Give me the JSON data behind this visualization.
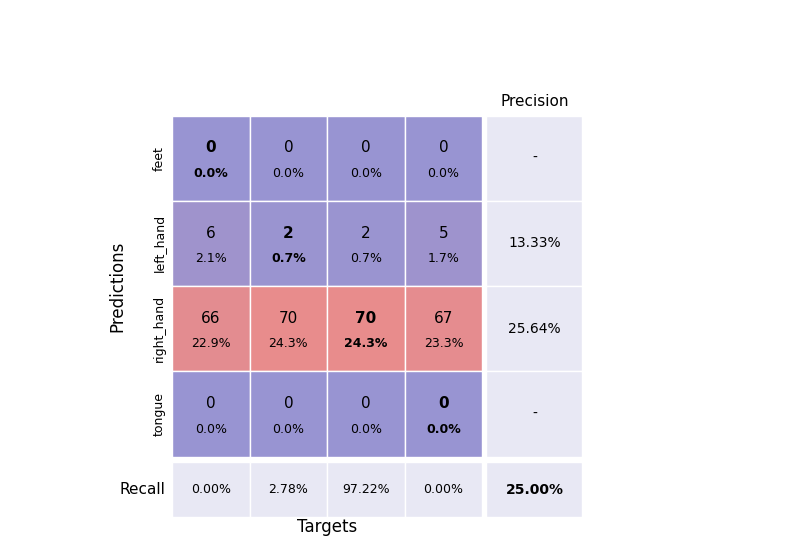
{
  "classes": [
    "feet",
    "left_hand",
    "right_hand",
    "tongue"
  ],
  "matrix": [
    [
      0,
      0,
      0,
      0
    ],
    [
      6,
      2,
      2,
      5
    ],
    [
      66,
      70,
      70,
      67
    ],
    [
      0,
      0,
      0,
      0
    ]
  ],
  "matrix_pct": [
    [
      "0.0%",
      "0.0%",
      "0.0%",
      "0.0%"
    ],
    [
      "2.1%",
      "0.7%",
      "0.7%",
      "1.7%"
    ],
    [
      "22.9%",
      "24.3%",
      "24.3%",
      "23.3%"
    ],
    [
      "0.0%",
      "0.0%",
      "0.0%",
      "0.0%"
    ]
  ],
  "precision": [
    "-",
    "13.33%",
    "25.64%",
    "-"
  ],
  "recall": [
    "0.00%",
    "2.78%",
    "97.22%",
    "0.00%"
  ],
  "overall_recall": "25.00%",
  "xlabel": "Targets",
  "ylabel": "Predictions",
  "precision_label": "Precision",
  "recall_label": "Recall",
  "max_val": 70,
  "blue_low": [
    152,
    148,
    210
  ],
  "red_high": [
    232,
    140,
    140
  ],
  "prec_bg": "#e8e8f4",
  "rec_bg": "#e8e8f4",
  "figsize": [
    8.0,
    5.5
  ]
}
